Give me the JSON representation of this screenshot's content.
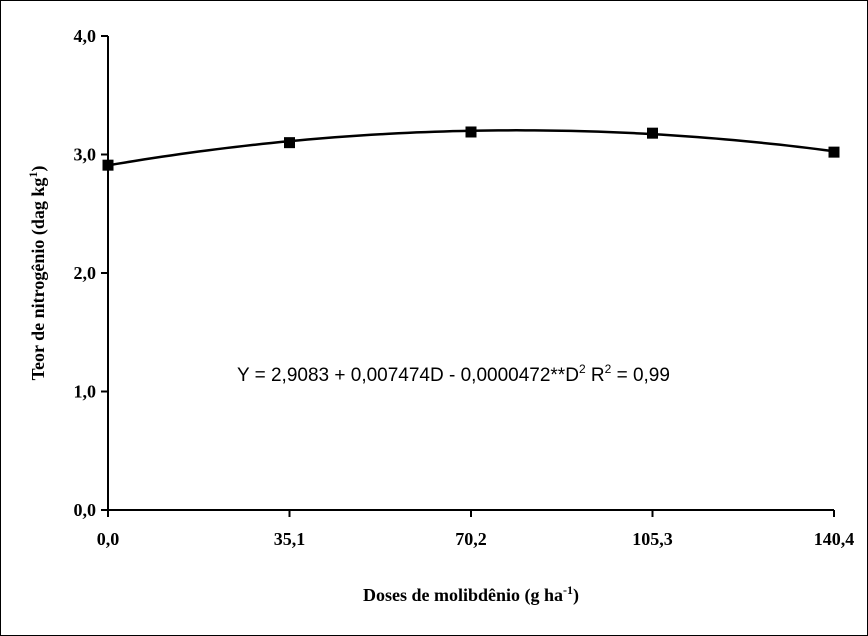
{
  "chart_data": {
    "type": "scatter",
    "xlabel": "Doses de molibdênio (g ha",
    "xlabel_sup": "-1",
    "xlabel_end": ")",
    "ylabel": "Teor de nitrogênio (dag kg",
    "ylabel_sup": "1",
    "ylabel_end": ")",
    "x_ticks": [
      "0,0",
      "35,1",
      "70,2",
      "105,3",
      "140,4"
    ],
    "x_tick_values": [
      0,
      35.1,
      70.2,
      105.3,
      140.4
    ],
    "y_ticks": [
      "0,0",
      "1,0",
      "2,0",
      "3,0",
      "4,0"
    ],
    "y_tick_values": [
      0,
      1,
      2,
      3,
      4
    ],
    "xlim": [
      0,
      140.4
    ],
    "ylim": [
      0,
      4
    ],
    "grid": false,
    "points": {
      "x": [
        0,
        35.1,
        70.2,
        105.3,
        140.4
      ],
      "y": [
        2.91,
        3.1,
        3.19,
        3.18,
        3.02
      ]
    },
    "fit": {
      "intercept": 2.9083,
      "linear": 0.007474,
      "quadratic": -4.72e-05
    },
    "equation": {
      "part1": "Y = 2,9083 + 0,007474D - 0,0000472**D",
      "sup1": "2",
      "part2": " R",
      "sup2": "2",
      "part3": " = 0,99"
    }
  }
}
